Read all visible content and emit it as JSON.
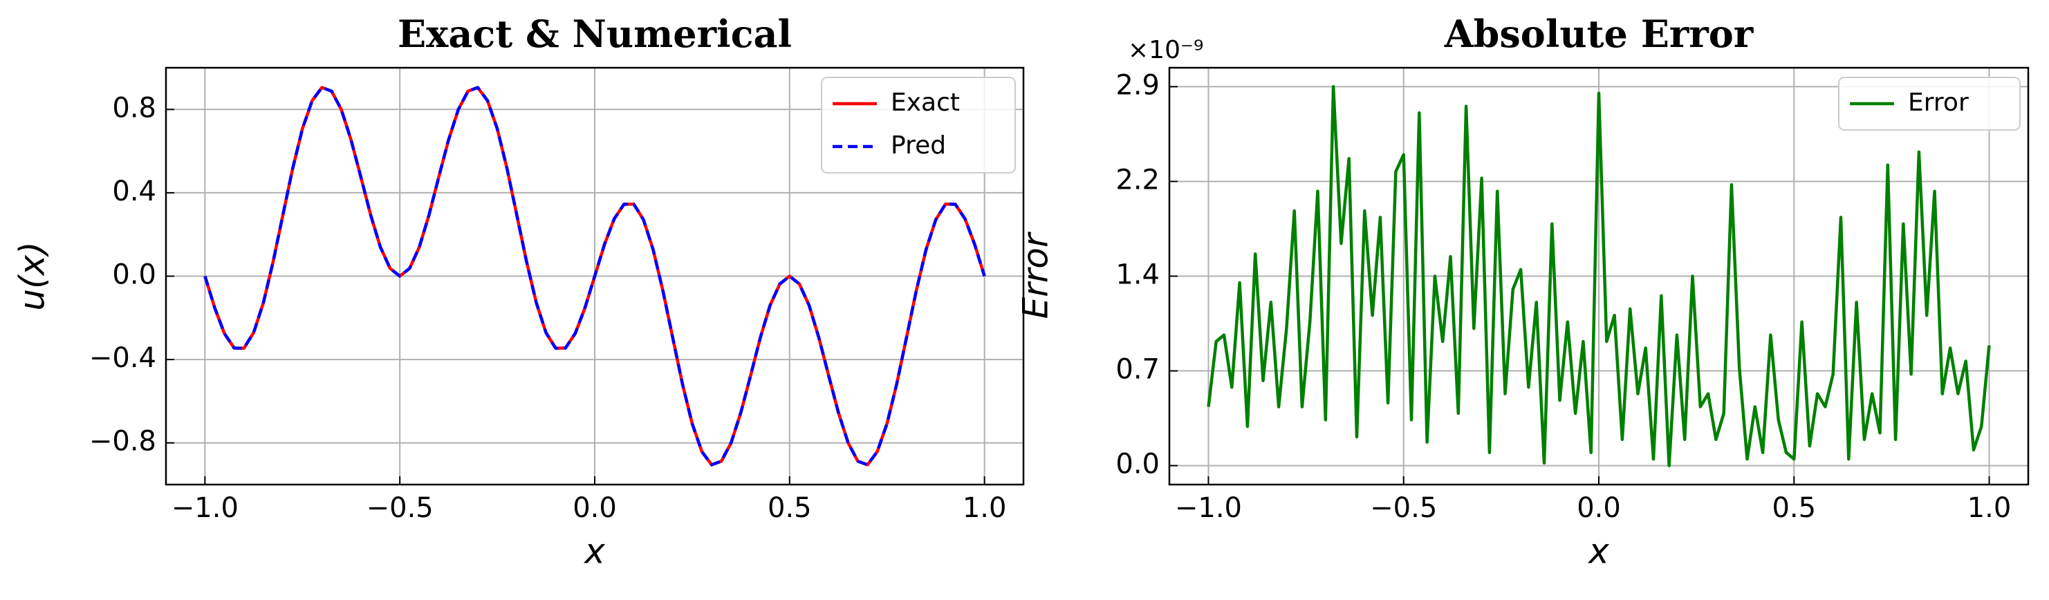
{
  "chart_data": [
    {
      "type": "line",
      "title": "Exact & Numerical",
      "xlabel": "x",
      "ylabel": "u(x)",
      "x": [
        -1,
        -0.975,
        -0.95,
        -0.925,
        -0.9,
        -0.875,
        -0.85,
        -0.825,
        -0.8,
        -0.775,
        -0.75,
        -0.725,
        -0.7,
        -0.675,
        -0.65,
        -0.625,
        -0.6,
        -0.575,
        -0.55,
        -0.525,
        -0.5,
        -0.475,
        -0.45,
        -0.425,
        -0.4,
        -0.375,
        -0.35,
        -0.325,
        -0.3,
        -0.275,
        -0.25,
        -0.225,
        -0.2,
        -0.175,
        -0.15,
        -0.125,
        -0.1,
        -0.075,
        -0.05,
        -0.025,
        0,
        0.025,
        0.05,
        0.075,
        0.1,
        0.125,
        0.15,
        0.175,
        0.2,
        0.225,
        0.25,
        0.275,
        0.3,
        0.325,
        0.35,
        0.375,
        0.4,
        0.425,
        0.45,
        0.475,
        0.5,
        0.525,
        0.55,
        0.575,
        0.6,
        0.625,
        0.65,
        0.675,
        0.7,
        0.725,
        0.75,
        0.775,
        0.8,
        0.825,
        0.85,
        0.875,
        0.9,
        0.925,
        0.95,
        0.975,
        1
      ],
      "series": [
        {
          "name": "Exact",
          "color": "#ff0000",
          "linestyle": "solid",
          "values": [
            0,
            -0.152,
            -0.275,
            -0.345,
            -0.346,
            -0.271,
            -0.127,
            0.07,
            0.294,
            0.516,
            0.707,
            0.842,
            0.905,
            0.888,
            0.799,
            0.653,
            0.476,
            0.295,
            0.14,
            0.037,
            0,
            0.037,
            0.14,
            0.295,
            0.476,
            0.653,
            0.799,
            0.888,
            0.905,
            0.842,
            0.707,
            0.516,
            0.294,
            0.07,
            -0.127,
            -0.271,
            -0.346,
            -0.345,
            -0.275,
            -0.152,
            0,
            0.152,
            0.275,
            0.345,
            0.346,
            0.271,
            0.127,
            -0.07,
            -0.294,
            -0.516,
            -0.707,
            -0.842,
            -0.905,
            -0.888,
            -0.799,
            -0.653,
            -0.476,
            -0.295,
            -0.14,
            -0.037,
            0,
            -0.037,
            -0.14,
            -0.295,
            -0.476,
            -0.653,
            -0.799,
            -0.888,
            -0.905,
            -0.842,
            -0.707,
            -0.516,
            -0.294,
            -0.07,
            0.127,
            0.271,
            0.346,
            0.345,
            0.275,
            0.152,
            0
          ]
        },
        {
          "name": "Pred",
          "color": "#0000ff",
          "linestyle": "dashed",
          "values": [
            0,
            -0.152,
            -0.275,
            -0.345,
            -0.346,
            -0.271,
            -0.127,
            0.07,
            0.294,
            0.516,
            0.707,
            0.842,
            0.905,
            0.888,
            0.799,
            0.653,
            0.476,
            0.295,
            0.14,
            0.037,
            0,
            0.037,
            0.14,
            0.295,
            0.476,
            0.653,
            0.799,
            0.888,
            0.905,
            0.842,
            0.707,
            0.516,
            0.294,
            0.07,
            -0.127,
            -0.271,
            -0.346,
            -0.345,
            -0.275,
            -0.152,
            0,
            0.152,
            0.275,
            0.345,
            0.346,
            0.271,
            0.127,
            -0.07,
            -0.294,
            -0.516,
            -0.707,
            -0.842,
            -0.905,
            -0.888,
            -0.799,
            -0.653,
            -0.476,
            -0.295,
            -0.14,
            -0.037,
            0,
            -0.037,
            -0.14,
            -0.295,
            -0.476,
            -0.653,
            -0.799,
            -0.888,
            -0.905,
            -0.842,
            -0.707,
            -0.516,
            -0.294,
            -0.07,
            0.127,
            0.271,
            0.346,
            0.345,
            0.275,
            0.152,
            0
          ]
        }
      ],
      "xlim": [
        -1.1,
        1.1
      ],
      "xticks": [
        {
          "value": -1,
          "label": "−1.0"
        },
        {
          "value": -0.5,
          "label": "−0.5"
        },
        {
          "value": 0,
          "label": "0.0"
        },
        0.5,
        {
          "value": 1,
          "label": "1.0"
        }
      ],
      "ylim": [
        -1,
        1
      ],
      "yticks": [
        {
          "value": -0.8,
          "label": "−0.8"
        },
        {
          "value": -0.4,
          "label": "−0.4"
        },
        {
          "value": 0,
          "label": "0.0"
        },
        0.4,
        0.8
      ],
      "grid": true,
      "legend": "upper right"
    },
    {
      "type": "line",
      "title": "Absolute Error",
      "xlabel": "x",
      "ylabel": "Error",
      "y_offset_label": "×10⁻⁹",
      "x": [
        -1,
        -0.98,
        -0.96,
        -0.94,
        -0.92,
        -0.9,
        -0.88,
        -0.86,
        -0.84,
        -0.82,
        -0.8,
        -0.78,
        -0.76,
        -0.74,
        -0.72,
        -0.7,
        -0.68,
        -0.66,
        -0.64,
        -0.62,
        -0.6,
        -0.58,
        -0.56,
        -0.54,
        -0.52,
        -0.5,
        -0.48,
        -0.46,
        -0.44,
        -0.42,
        -0.4,
        -0.38,
        -0.36,
        -0.34,
        -0.32,
        -0.3,
        -0.28,
        -0.26,
        -0.24,
        -0.22,
        -0.2,
        -0.18,
        -0.16,
        -0.14,
        -0.12,
        -0.1,
        -0.08,
        -0.06,
        -0.04,
        -0.02,
        0,
        0.02,
        0.04,
        0.06,
        0.08,
        0.1,
        0.12,
        0.14,
        0.16,
        0.18,
        0.2,
        0.22,
        0.24,
        0.26,
        0.28,
        0.3,
        0.32,
        0.34,
        0.36,
        0.38,
        0.4,
        0.42,
        0.44,
        0.46,
        0.48,
        0.5,
        0.52,
        0.54,
        0.56,
        0.58,
        0.6,
        0.62,
        0.64,
        0.66,
        0.68,
        0.7,
        0.72,
        0.74,
        0.76,
        0.78,
        0.8,
        0.82,
        0.84,
        0.86,
        0.88,
        0.9,
        0.92,
        0.94,
        0.96,
        0.98,
        1
      ],
      "series": [
        {
          "name": "Error",
          "color": "#008000",
          "linestyle": "solid",
          "values": [
            0.45,
            0.95,
            1.0,
            0.6,
            1.4,
            0.3,
            1.62,
            0.65,
            1.25,
            0.45,
            1.05,
            1.95,
            0.45,
            1.1,
            2.1,
            0.35,
            2.9,
            1.7,
            2.35,
            0.22,
            1.95,
            1.15,
            1.9,
            0.48,
            2.25,
            2.38,
            0.35,
            2.7,
            0.18,
            1.45,
            0.95,
            1.6,
            0.4,
            2.75,
            1.05,
            2.2,
            0.1,
            2.1,
            0.55,
            1.35,
            1.5,
            0.6,
            1.25,
            0.02,
            1.85,
            0.5,
            1.1,
            0.4,
            0.95,
            0.1,
            2.85,
            0.95,
            1.15,
            0.2,
            1.2,
            0.55,
            0.9,
            0.05,
            1.3,
            0.0,
            1.0,
            0.2,
            1.45,
            0.45,
            0.55,
            0.2,
            0.4,
            2.15,
            0.75,
            0.05,
            0.45,
            0.1,
            1.0,
            0.35,
            0.1,
            0.05,
            1.1,
            0.15,
            0.55,
            0.45,
            0.7,
            1.9,
            0.05,
            1.25,
            0.2,
            0.55,
            0.25,
            2.3,
            0.2,
            1.85,
            0.7,
            2.4,
            1.15,
            2.1,
            0.55,
            0.9,
            0.55,
            0.8,
            0.12,
            0.3,
            0.92
          ]
        }
      ],
      "xlim": [
        -1.1,
        1.1
      ],
      "xticks": [
        {
          "value": -1,
          "label": "−1.0"
        },
        {
          "value": -0.5,
          "label": "−0.5"
        },
        {
          "value": 0,
          "label": "0.0"
        },
        0.5,
        {
          "value": 1,
          "label": "1.0"
        }
      ],
      "ylim": [
        -0.145,
        3.045
      ],
      "yticks": [
        {
          "value": 0,
          "label": "0.0"
        },
        {
          "value": 0.725,
          "label": "0.7"
        },
        {
          "value": 1.45,
          "label": "1.4"
        },
        {
          "value": 2.175,
          "label": "2.2"
        },
        2.9
      ],
      "grid": true,
      "legend": "upper right"
    }
  ]
}
